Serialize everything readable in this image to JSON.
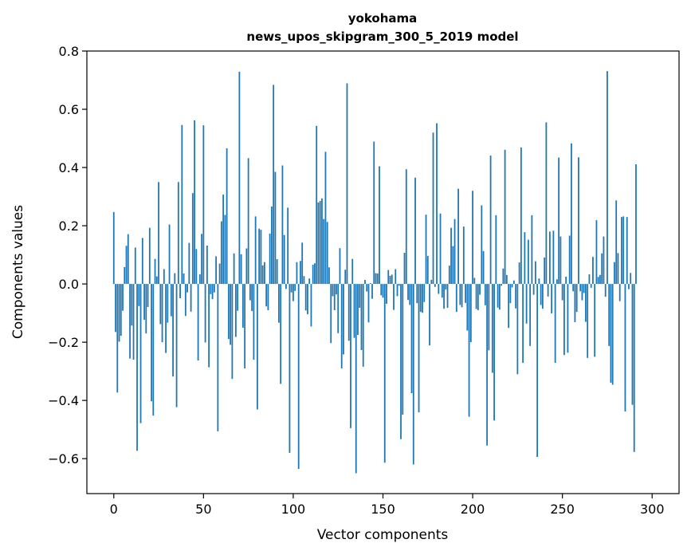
{
  "chart_data": {
    "type": "bar",
    "title": "yokohama",
    "subtitle": "news_upos_skipgram_300_5_2019 model",
    "xlabel": "Vector components",
    "ylabel": "Components values",
    "xlim": [
      -15,
      315
    ],
    "ylim": [
      -0.72,
      0.8
    ],
    "x_ticks": [
      0,
      50,
      100,
      150,
      200,
      250,
      300
    ],
    "x_tick_labels": [
      "0",
      "50",
      "100",
      "150",
      "200",
      "250",
      "300"
    ],
    "y_ticks": [
      -0.6,
      -0.4,
      -0.2,
      0.0,
      0.2,
      0.4,
      0.6,
      0.8
    ],
    "y_tick_labels": [
      "−0.6",
      "−0.4",
      "−0.2",
      "0.0",
      "0.2",
      "0.4",
      "0.6",
      "0.8"
    ],
    "grid": false,
    "bar_color": "#1f77b4",
    "x_start": 0,
    "values": [
      0.247,
      -0.165,
      -0.373,
      -0.198,
      -0.178,
      -0.092,
      0.058,
      0.131,
      0.171,
      -0.256,
      -0.143,
      -0.26,
      0.125,
      -0.573,
      -0.076,
      -0.478,
      0.158,
      -0.123,
      -0.17,
      -0.079,
      0.193,
      -0.403,
      -0.452,
      0.086,
      0.026,
      0.35,
      -0.138,
      -0.2,
      0.051,
      -0.237,
      -0.133,
      0.204,
      -0.111,
      -0.318,
      0.037,
      -0.423,
      0.35,
      -0.049,
      0.546,
      0.036,
      -0.11,
      -0.029,
      0.141,
      -0.095,
      0.312,
      0.562,
      0.12,
      -0.263,
      0.033,
      0.172,
      0.545,
      -0.201,
      0.132,
      -0.286,
      -0.035,
      -0.052,
      -0.029,
      0.095,
      -0.506,
      0.07,
      0.215,
      0.307,
      0.237,
      0.466,
      -0.189,
      -0.209,
      -0.326,
      0.105,
      -0.182,
      -0.092,
      0.729,
      0.102,
      -0.15,
      -0.29,
      0.122,
      0.432,
      -0.056,
      -0.093,
      -0.26,
      0.232,
      -0.431,
      0.19,
      0.186,
      0.064,
      0.075,
      -0.077,
      -0.09,
      0.173,
      0.266,
      0.684,
      0.385,
      0.085,
      -0.133,
      -0.343,
      0.407,
      0.168,
      -0.017,
      0.262,
      -0.58,
      -0.029,
      -0.059,
      -0.024,
      0.075,
      -0.635,
      0.079,
      0.142,
      0.027,
      -0.091,
      -0.104,
      0.019,
      -0.146,
      0.066,
      0.071,
      0.543,
      0.28,
      0.285,
      0.294,
      0.223,
      0.454,
      0.213,
      0.057,
      -0.203,
      -0.042,
      -0.09,
      -0.036,
      -0.169,
      0.123,
      -0.29,
      -0.242,
      0.049,
      0.689,
      -0.195,
      -0.495,
      0.086,
      -0.185,
      -0.65,
      -0.175,
      -0.082,
      -0.227,
      -0.284,
      0.014,
      -0.026,
      -0.132,
      0.003,
      -0.051,
      0.489,
      0.037,
      0.036,
      0.404,
      -0.039,
      -0.047,
      -0.614,
      -0.068,
      0.048,
      0.028,
      0.032,
      -0.089,
      0.051,
      -0.042,
      -0.006,
      -0.533,
      -0.449,
      0.107,
      0.394,
      -0.055,
      -0.072,
      -0.375,
      -0.62,
      0.365,
      -0.066,
      -0.441,
      -0.096,
      -0.099,
      -0.062,
      0.238,
      0.096,
      -0.211,
      0.014,
      0.52,
      -0.01,
      0.552,
      -0.034,
      0.242,
      -0.047,
      -0.085,
      -0.019,
      -0.082,
      0.063,
      0.193,
      0.13,
      0.223,
      -0.096,
      0.327,
      -0.072,
      -0.08,
      0.197,
      -0.065,
      -0.16,
      -0.456,
      -0.2,
      0.32,
      0.021,
      -0.086,
      -0.09,
      -0.037,
      0.27,
      0.113,
      -0.073,
      -0.555,
      -0.228,
      0.441,
      -0.305,
      -0.469,
      0.236,
      -0.081,
      -0.088,
      -0.006,
      0.053,
      0.461,
      0.031,
      -0.151,
      -0.066,
      -0.012,
      0.012,
      -0.084,
      -0.31,
      0.074,
      0.469,
      -0.271,
      0.178,
      -0.136,
      0.152,
      -0.213,
      0.236,
      -0.037,
      0.078,
      -0.594,
      0.019,
      -0.072,
      -0.085,
      0.091,
      0.555,
      -0.043,
      0.18,
      -0.101,
      0.183,
      -0.271,
      0.016,
      0.434,
      0.163,
      -0.056,
      -0.244,
      0.025,
      -0.236,
      0.166,
      0.483,
      -0.025,
      -0.131,
      -0.096,
      0.435,
      -0.025,
      -0.056,
      -0.031,
      -0.13,
      -0.254,
      0.033,
      -0.013,
      0.093,
      -0.25,
      0.219,
      0.024,
      0.031,
      0.105,
      0.163,
      -0.044,
      0.731,
      -0.213,
      -0.339,
      -0.346,
      0.075,
      0.287,
      0.106,
      -0.059,
      0.23,
      0.232,
      -0.438,
      0.23,
      -0.018,
      0.038,
      -0.415,
      -0.577,
      0.411
    ]
  }
}
